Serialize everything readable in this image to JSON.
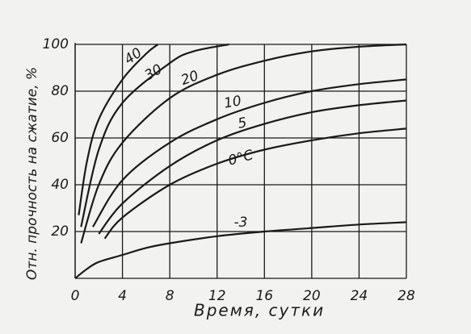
{
  "chart_data": {
    "type": "line",
    "xlabel": "Время, сутки",
    "ylabel": "Отн. прочность на сжатие, %",
    "xlim": [
      0,
      28
    ],
    "xticks": [
      0,
      4,
      8,
      12,
      16,
      20,
      24,
      28
    ],
    "ylim": [
      0,
      100
    ],
    "yticks": [
      20,
      40,
      60,
      80,
      100
    ],
    "grid": true,
    "series": [
      {
        "name": "40",
        "color": "#1a1a1a",
        "x": [
          0.3,
          1,
          2,
          4,
          6,
          7
        ],
        "values": [
          27,
          50,
          68,
          85,
          96,
          100
        ]
      },
      {
        "name": "30",
        "color": "#1a1a1a",
        "x": [
          0.5,
          2,
          4,
          8,
          10,
          13
        ],
        "values": [
          22,
          55,
          75,
          92,
          97,
          100
        ]
      },
      {
        "name": "20",
        "color": "#1a1a1a",
        "x": [
          0.5,
          2,
          4,
          8,
          12,
          16,
          20,
          24,
          28
        ],
        "values": [
          15,
          40,
          58,
          77,
          87,
          93,
          97,
          99,
          100
        ]
      },
      {
        "name": "10",
        "color": "#1a1a1a",
        "x": [
          1.5,
          4,
          8,
          12,
          16,
          20,
          24,
          28
        ],
        "values": [
          22,
          42,
          58,
          68,
          75,
          80,
          83,
          85
        ]
      },
      {
        "name": "5",
        "color": "#1a1a1a",
        "x": [
          2,
          4,
          8,
          12,
          16,
          20,
          24,
          28
        ],
        "values": [
          19,
          32,
          48,
          59,
          66,
          71,
          74,
          76
        ]
      },
      {
        "name": "0°C",
        "color": "#1a1a1a",
        "x": [
          2.5,
          4,
          8,
          12,
          16,
          20,
          24,
          28
        ],
        "values": [
          17,
          26,
          40,
          49,
          55,
          59,
          62,
          64
        ]
      },
      {
        "name": "-3",
        "color": "#1a1a1a",
        "x": [
          0,
          1,
          2,
          4,
          6,
          8,
          12,
          16,
          20,
          24,
          28
        ],
        "values": [
          0,
          4,
          7,
          10,
          13,
          15,
          18,
          20,
          21.5,
          23,
          24
        ]
      }
    ]
  }
}
